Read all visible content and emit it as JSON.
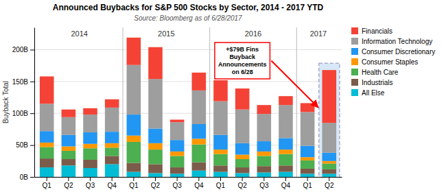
{
  "chart_data": {
    "type": "bar",
    "stacked": true,
    "title": "Announced Buybacks for S&P 500 Stocks by Sector, 2014 - 2017 YTD",
    "subtitle": "Source:  Bloomberg as of 6/28/2017",
    "ylabel": "Buyback Total",
    "categories": [
      "Q1",
      "Q2",
      "Q3",
      "Q4",
      "Q1",
      "Q2",
      "Q3",
      "Q4",
      "Q1",
      "Q2",
      "Q3",
      "Q4",
      "Q1",
      "Q2"
    ],
    "series": [
      {
        "name": "All Else",
        "color": "#00bcd4",
        "values": [
          15,
          18,
          14,
          20,
          8,
          6,
          5,
          10,
          8,
          6,
          7,
          8,
          5,
          5
        ]
      },
      {
        "name": "Industrials",
        "color": "#7b5c4a",
        "values": [
          14,
          10,
          13,
          13,
          14,
          14,
          10,
          13,
          10,
          9,
          10,
          10,
          8,
          7
        ]
      },
      {
        "name": "Health Care",
        "color": "#4caf50",
        "values": [
          18,
          13,
          18,
          13,
          33,
          23,
          18,
          28,
          18,
          13,
          16,
          18,
          13,
          9
        ]
      },
      {
        "name": "Consumer Staples",
        "color": "#ff9800",
        "values": [
          7,
          7,
          7,
          7,
          10,
          10,
          7,
          9,
          7,
          7,
          7,
          7,
          5,
          4
        ]
      },
      {
        "name": "Consumer Discretionary",
        "color": "#2196f3",
        "values": [
          18,
          18,
          18,
          18,
          33,
          23,
          18,
          23,
          23,
          18,
          16,
          18,
          18,
          13
        ]
      },
      {
        "name": "Information Technology",
        "color": "#9e9e9e",
        "values": [
          43,
          28,
          28,
          38,
          78,
          78,
          28,
          53,
          53,
          53,
          43,
          52,
          53,
          47
        ]
      },
      {
        "name": "Financials",
        "color": "#f44336",
        "values": [
          43,
          12,
          10,
          13,
          43,
          50,
          4,
          28,
          33,
          33,
          14,
          14,
          14,
          83
        ]
      }
    ],
    "annotations": [
      "2014",
      "2015",
      "2016",
      "2017",
      "+$79B Fins\nBuyback\nAnnouncements\non 6/28"
    ],
    "ylim": [
      0,
      235
    ],
    "yticks": [
      {
        "value": 0,
        "label": "0B"
      },
      {
        "value": 50,
        "label": "50B"
      },
      {
        "value": 100,
        "label": "100B"
      },
      {
        "value": 150,
        "label": "150B"
      },
      {
        "value": 200,
        "label": "200B"
      }
    ],
    "grid": true,
    "legend": "right"
  }
}
